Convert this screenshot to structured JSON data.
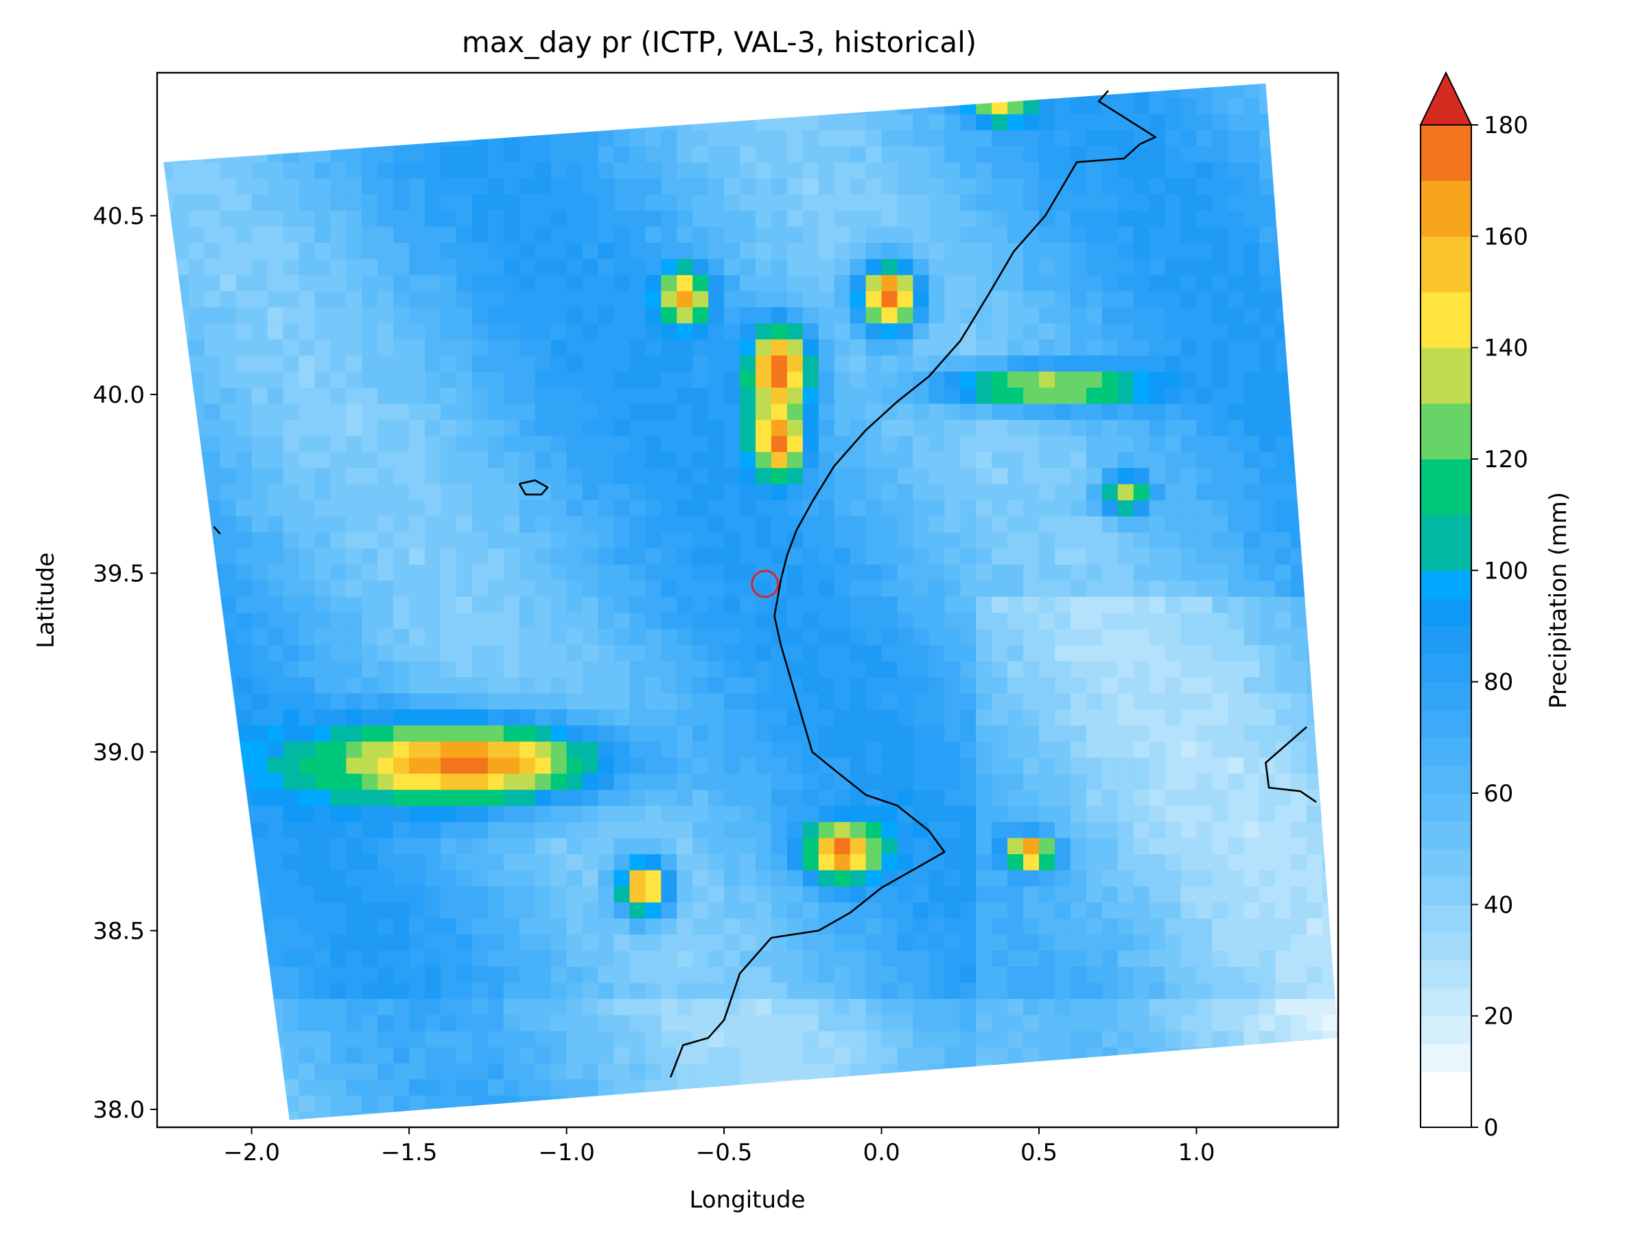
{
  "chart_data": {
    "type": "heatmap",
    "title": "max_day pr (ICTP, VAL-3, historical)",
    "xlabel": "Longitude",
    "ylabel": "Latitude",
    "xlim": [
      -2.3,
      1.45
    ],
    "ylim": [
      37.95,
      40.9
    ],
    "xticks": [
      -2.0,
      -1.5,
      -1.0,
      -0.5,
      0.0,
      0.5,
      1.0
    ],
    "xtick_labels": [
      "−2.0",
      "−1.5",
      "−1.0",
      "−0.5",
      "0.0",
      "0.5",
      "1.0"
    ],
    "yticks": [
      38.0,
      38.5,
      39.0,
      39.5,
      40.0,
      40.5
    ],
    "ytick_labels": [
      "38.0",
      "38.5",
      "39.0",
      "39.5",
      "40.0",
      "40.5"
    ],
    "domain_corners": {
      "top_left": [
        -2.28,
        40.65
      ],
      "top_right": [
        1.22,
        40.87
      ],
      "bottom_right": [
        1.45,
        38.2
      ],
      "bottom_left": [
        -1.88,
        37.97
      ]
    },
    "hotspots": [
      {
        "lon": -1.35,
        "lat": 38.95,
        "value": 175,
        "spread_lon": 0.45,
        "spread_lat": 0.12
      },
      {
        "lon": -0.78,
        "lat": 38.6,
        "value": 170,
        "spread_lon": 0.08,
        "spread_lat": 0.08
      },
      {
        "lon": -0.15,
        "lat": 38.7,
        "value": 175,
        "spread_lon": 0.12,
        "spread_lat": 0.08
      },
      {
        "lon": -0.35,
        "lat": 40.05,
        "value": 180,
        "spread_lon": 0.1,
        "spread_lat": 0.12
      },
      {
        "lon": -0.35,
        "lat": 39.85,
        "value": 175,
        "spread_lon": 0.08,
        "spread_lat": 0.1
      },
      {
        "lon": 0.0,
        "lat": 40.25,
        "value": 180,
        "spread_lon": 0.1,
        "spread_lat": 0.1
      },
      {
        "lon": -0.65,
        "lat": 40.25,
        "value": 165,
        "spread_lon": 0.08,
        "spread_lat": 0.08
      },
      {
        "lon": 0.45,
        "lat": 38.7,
        "value": 175,
        "spread_lon": 0.08,
        "spread_lat": 0.05
      },
      {
        "lon": 0.5,
        "lat": 40.0,
        "value": 140,
        "spread_lon": 0.35,
        "spread_lat": 0.06
      },
      {
        "lon": 0.75,
        "lat": 39.7,
        "value": 135,
        "spread_lon": 0.08,
        "spread_lat": 0.06
      },
      {
        "lon": 0.35,
        "lat": 40.8,
        "value": 145,
        "spread_lon": 0.1,
        "spread_lat": 0.06
      }
    ],
    "background_range_mm": [
      30,
      90
    ],
    "coastline": [
      [
        0.72,
        40.85
      ],
      [
        0.69,
        40.82
      ],
      [
        0.87,
        40.72
      ],
      [
        0.82,
        40.7
      ],
      [
        0.77,
        40.66
      ],
      [
        0.62,
        40.65
      ],
      [
        0.52,
        40.5
      ],
      [
        0.42,
        40.4
      ],
      [
        0.34,
        40.28
      ],
      [
        0.25,
        40.15
      ],
      [
        0.15,
        40.05
      ],
      [
        0.05,
        39.98
      ],
      [
        -0.05,
        39.9
      ],
      [
        -0.15,
        39.8
      ],
      [
        -0.22,
        39.7
      ],
      [
        -0.27,
        39.62
      ],
      [
        -0.3,
        39.55
      ],
      [
        -0.32,
        39.48
      ],
      [
        -0.34,
        39.38
      ],
      [
        -0.32,
        39.3
      ],
      [
        -0.27,
        39.15
      ],
      [
        -0.22,
        39.0
      ],
      [
        -0.15,
        38.95
      ],
      [
        -0.05,
        38.88
      ],
      [
        0.05,
        38.85
      ],
      [
        0.15,
        38.78
      ],
      [
        0.2,
        38.72
      ],
      [
        0.12,
        38.68
      ],
      [
        0.0,
        38.62
      ],
      [
        -0.1,
        38.55
      ],
      [
        -0.2,
        38.5
      ],
      [
        -0.35,
        38.48
      ],
      [
        -0.45,
        38.38
      ],
      [
        -0.5,
        38.25
      ],
      [
        -0.55,
        38.2
      ],
      [
        -0.63,
        38.18
      ],
      [
        -0.67,
        38.09
      ]
    ],
    "coast_right": [
      [
        1.35,
        39.07
      ],
      [
        1.22,
        38.97
      ],
      [
        1.23,
        38.9
      ],
      [
        1.33,
        38.89
      ],
      [
        1.38,
        38.86
      ]
    ],
    "island_contour": [
      [
        -1.15,
        39.75
      ],
      [
        -1.1,
        39.76
      ],
      [
        -1.06,
        39.74
      ],
      [
        -1.08,
        39.72
      ],
      [
        -1.13,
        39.72
      ],
      [
        -1.15,
        39.75
      ]
    ],
    "edge_mark": [
      [
        -2.12,
        39.63
      ],
      [
        -2.1,
        39.61
      ]
    ],
    "marker": {
      "lon": -0.37,
      "lat": 39.47,
      "shape": "circle",
      "color": "#d62728"
    },
    "colorbar": {
      "label": "Precipitation (mm)",
      "ticks": [
        0,
        20,
        40,
        60,
        80,
        100,
        120,
        140,
        160,
        180
      ],
      "range": [
        0,
        180
      ],
      "extend": "max",
      "levels": [
        0,
        10,
        15,
        20,
        25,
        30,
        35,
        40,
        45,
        50,
        55,
        60,
        65,
        70,
        75,
        80,
        85,
        90,
        95,
        100,
        110,
        120,
        130,
        140,
        150,
        160,
        170,
        180
      ],
      "colors": [
        "#ffffff",
        "#e8f6fe",
        "#d6effd",
        "#c4e8fc",
        "#b4e2fc",
        "#a4dbfb",
        "#94d5fb",
        "#85cefb",
        "#77c8fa",
        "#6ac2fa",
        "#5dbcfa",
        "#52b6f9",
        "#47b1f9",
        "#3caaf8",
        "#32a4f8",
        "#28a0f7",
        "#1f9bf6",
        "#109af7",
        "#00a8ff",
        "#00b8a4",
        "#00c87a",
        "#66d466",
        "#bfdb4f",
        "#ffe33e",
        "#f9c42d",
        "#f9a51c",
        "#f4761c",
        "#d62b20"
      ],
      "extend_color": "#d62b20"
    }
  }
}
